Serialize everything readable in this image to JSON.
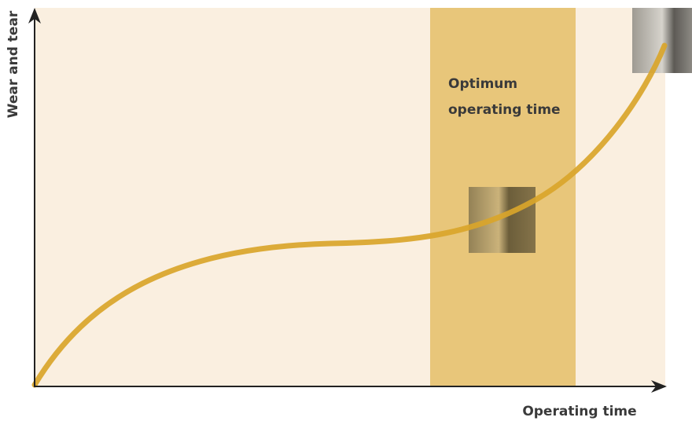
{
  "y_axis_label": "Wear and tear",
  "x_axis_label": "Operating time",
  "band_label": [
    "Optimum",
    "operating time"
  ]
}
